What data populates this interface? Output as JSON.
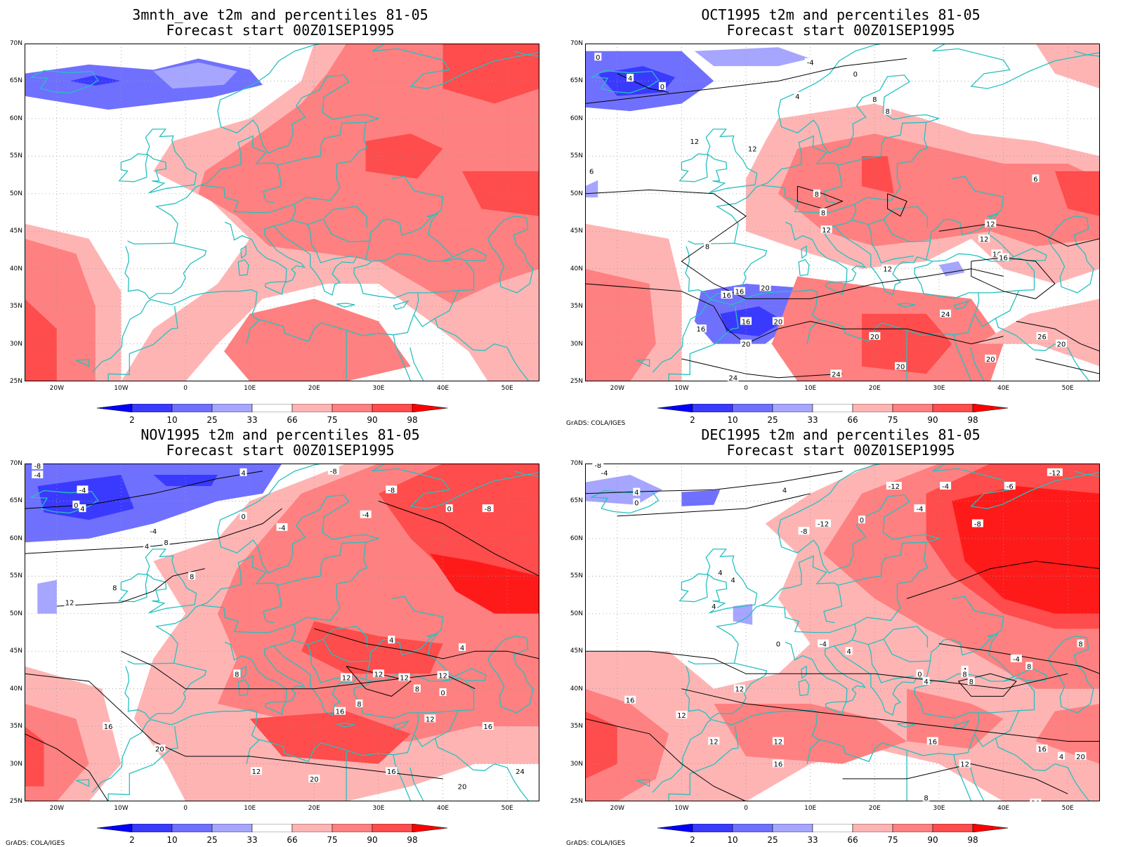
{
  "panels": [
    {
      "title1": "3mnth_ave t2m and percentiles 81-05",
      "title2": "Forecast start 00Z01SEP1995",
      "credit": ""
    },
    {
      "title1": "OCT1995 t2m and percentiles 81-05",
      "title2": "Forecast start 00Z01SEP1995",
      "credit": "GrADS: COLA/IGES"
    },
    {
      "title1": "NOV1995 t2m and percentiles 81-05",
      "title2": "Forecast start 00Z01SEP1995",
      "credit": "GrADS: COLA/IGES"
    },
    {
      "title1": "DEC1995 t2m and percentiles 81-05",
      "title2": "Forecast start 00Z01SEP1995",
      "credit": "GrADS: COLA/IGES"
    }
  ],
  "lat_labels": [
    "70N",
    "65N",
    "60N",
    "55N",
    "50N",
    "45N",
    "40N",
    "35N",
    "30N",
    "25N"
  ],
  "lon_labels": [
    "20W",
    "10W",
    "0",
    "10E",
    "20E",
    "30E",
    "40E",
    "50E"
  ],
  "colorbar": {
    "labels": [
      "2",
      "10",
      "25",
      "33",
      "66",
      "75",
      "90",
      "98"
    ],
    "colors": [
      "#0000ff",
      "#3a3aff",
      "#7070ff",
      "#a6a6ff",
      "#ffffff",
      "#ffb4b4",
      "#ff8080",
      "#ff4c4c",
      "#ff0000"
    ]
  },
  "shading_colors": {
    "blue_dark": "#3a3aff",
    "blue_mid": "#7070ff",
    "blue_light": "#a6a6ff",
    "red_light": "#ffb4b4",
    "red_mid": "#ff8080",
    "red_strong": "#ff4c4c",
    "red_max": "#ff1a1a",
    "coast": "#26c0c0"
  },
  "contour_labels": {
    "oct": [
      "0",
      "4",
      "0",
      "-4",
      "0",
      "8",
      "4",
      "8",
      "12",
      "12",
      "6",
      "6",
      "8",
      "8",
      "12",
      "12",
      "12",
      "16",
      "16",
      "8",
      "12",
      "16",
      "16",
      "20",
      "16",
      "20",
      "16",
      "20",
      "20",
      "20",
      "20",
      "24",
      "20",
      "24",
      "26",
      "24"
    ],
    "nov": [
      "-8",
      "-4",
      "-4",
      "0",
      "4",
      "4",
      "8",
      "-8",
      "-8",
      "-4",
      "0",
      "-4",
      "4",
      "0",
      "-8",
      "-4",
      "8",
      "8",
      "12",
      "4",
      "4",
      "8",
      "12",
      "12",
      "12",
      "8",
      "0",
      "8",
      "12",
      "16",
      "12",
      "16",
      "16",
      "20",
      "12",
      "20",
      "16",
      "24",
      "20"
    ],
    "dec": [
      "-8",
      "-4",
      "4",
      "0",
      "4",
      "-12",
      "-4",
      "0",
      "-8",
      "-12",
      "-4",
      "-6",
      "-8",
      "-12",
      "4",
      "4",
      "4",
      "-4",
      "0",
      "4",
      "8",
      "4",
      "8",
      "0",
      "8",
      "-4",
      "4",
      "12",
      "8",
      "16",
      "16",
      "12",
      "12",
      "16",
      "12",
      "20",
      "8",
      "12",
      "16",
      "4",
      "20"
    ]
  }
}
